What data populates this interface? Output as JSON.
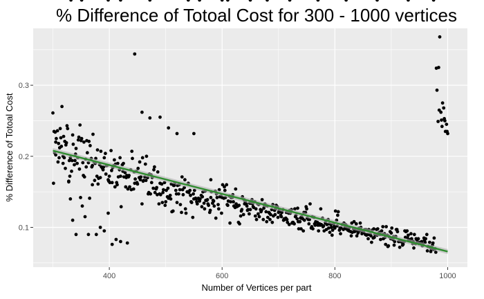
{
  "chart_data": {
    "type": "scatter",
    "title": "% Difference of Totoal Cost  for 300 - 1000 vertices",
    "xlabel": "Number of Vertices per part",
    "ylabel": "% Difference of Totoal Cost",
    "xlim": [
      265,
      1035
    ],
    "ylim": [
      0.044,
      0.38
    ],
    "xticks": [
      400,
      600,
      800,
      1000
    ],
    "xtick_labels": [
      "400",
      "600",
      "800",
      "1000"
    ],
    "yticks": [
      0.1,
      0.2,
      0.3
    ],
    "ytick_labels": [
      "0.1",
      "0.2",
      "0.3"
    ],
    "grid": true,
    "legend": "none",
    "colors": {
      "panel": "#ebebeb",
      "grid": "#ffffff",
      "points": "#000000",
      "trend": "#2e8b2e",
      "band": "#b3b3b3"
    },
    "trend_line": {
      "x": [
        300,
        1000
      ],
      "y": [
        0.208,
        0.066
      ]
    },
    "points_x": [
      300,
      301,
      303,
      304,
      305,
      306,
      308,
      309,
      310,
      311,
      313,
      314,
      315,
      316,
      318,
      319,
      320,
      321,
      323,
      324,
      325,
      326,
      328,
      329,
      330,
      331,
      333,
      334,
      335,
      336,
      338,
      339,
      340,
      341,
      343,
      344,
      345,
      346,
      348,
      349,
      350,
      351,
      353,
      354,
      355,
      356,
      358,
      359,
      360,
      361,
      363,
      364,
      365,
      366,
      368,
      369,
      370,
      371,
      373,
      374,
      375,
      376,
      378,
      379,
      380,
      381,
      383,
      384,
      385,
      386,
      388,
      389,
      390,
      391,
      393,
      394,
      395,
      396,
      398,
      399,
      400,
      401,
      403,
      404,
      405,
      406,
      408,
      409,
      410,
      411,
      413,
      414,
      415,
      416,
      418,
      419,
      420,
      421,
      423,
      424,
      425,
      426,
      428,
      429,
      430,
      431,
      433,
      434,
      435,
      436,
      438,
      439,
      440,
      441,
      443,
      444,
      445,
      446,
      448,
      449,
      450,
      451,
      453,
      454,
      455,
      456,
      458,
      459,
      460,
      461,
      463,
      464,
      465,
      466,
      468,
      469,
      470,
      471,
      473,
      474,
      475,
      476,
      478,
      479,
      480,
      481,
      483,
      484,
      485,
      486,
      488,
      489,
      490,
      491,
      493,
      494,
      495,
      496,
      498,
      499,
      500,
      501,
      503,
      504,
      505,
      506,
      508,
      509,
      510,
      511,
      513,
      514,
      515,
      516,
      518,
      519,
      520,
      521,
      523,
      524,
      525,
      526,
      528,
      529,
      530,
      531,
      533,
      534,
      535,
      536,
      538,
      539,
      540,
      541,
      543,
      544,
      545,
      546,
      548,
      549,
      550,
      551,
      553,
      554,
      555,
      556,
      558,
      559,
      560,
      561,
      563,
      564,
      565,
      566,
      568,
      569,
      570,
      571,
      573,
      574,
      575,
      576,
      578,
      579,
      580,
      581,
      583,
      584,
      585,
      586,
      588,
      589,
      590,
      591,
      593,
      594,
      595,
      596,
      598,
      599,
      600,
      601,
      603,
      604,
      605,
      606,
      608,
      609,
      610,
      611,
      613,
      614,
      615,
      616,
      618,
      619,
      620,
      621,
      623,
      624,
      625,
      626,
      628,
      629,
      630,
      631,
      633,
      634,
      635,
      636,
      638,
      639,
      640,
      641,
      643,
      644,
      645,
      646,
      648,
      649,
      650,
      651,
      653,
      654,
      655,
      656,
      658,
      659,
      660,
      661,
      663,
      664,
      665,
      666,
      668,
      669,
      670,
      671,
      673,
      674,
      675,
      676,
      678,
      679,
      680,
      681,
      683,
      684,
      685,
      686,
      688,
      689,
      690,
      691,
      693,
      694,
      695,
      696,
      698,
      699,
      700,
      701,
      703,
      704,
      705,
      706,
      708,
      709,
      710,
      711,
      713,
      714,
      715,
      716,
      718,
      719,
      720,
      721,
      723,
      724,
      725,
      726,
      728,
      729,
      730,
      731,
      733,
      734,
      735,
      736,
      738,
      739,
      740,
      741,
      743,
      744,
      745,
      746,
      748,
      749,
      750,
      751,
      753,
      754,
      755,
      756,
      758,
      759,
      760,
      761,
      763,
      764,
      765,
      766,
      768,
      769,
      770,
      771,
      773,
      774,
      775,
      776,
      778,
      779,
      780,
      781,
      783,
      784,
      785,
      786,
      788,
      789,
      790,
      791,
      793,
      794,
      795,
      796,
      798,
      799,
      800,
      801,
      803,
      804,
      805,
      806,
      808,
      809,
      810,
      811,
      813,
      814,
      815,
      816,
      818,
      819,
      820,
      821,
      823,
      824,
      825,
      826,
      828,
      829,
      830,
      831,
      833,
      834,
      835,
      836,
      838,
      839,
      840,
      841,
      843,
      844,
      845,
      846,
      848,
      849,
      850,
      851,
      853,
      854,
      855,
      856,
      858,
      859,
      860,
      861,
      863,
      864,
      865,
      866,
      868,
      869,
      870,
      871,
      873,
      874,
      875,
      876,
      878,
      879,
      880,
      881,
      883,
      884,
      885,
      886,
      888,
      889,
      890,
      891,
      893,
      894,
      895,
      896,
      898,
      899,
      900,
      901,
      903,
      904,
      905,
      906,
      908,
      909,
      910,
      911,
      913,
      914,
      915,
      916,
      918,
      919,
      920,
      921,
      923,
      924,
      925,
      926,
      928,
      929,
      930,
      931,
      933,
      934,
      935,
      936,
      938,
      939,
      940,
      941,
      943,
      944,
      945,
      946,
      948,
      949,
      950,
      951,
      953,
      954,
      955,
      956,
      958,
      959,
      960,
      961,
      963,
      964,
      965,
      966,
      968,
      969,
      970,
      971,
      973,
      974,
      975,
      976,
      978,
      979,
      980,
      981,
      983,
      984,
      985,
      986,
      988,
      989,
      990,
      991,
      993,
      994,
      995,
      996,
      998,
      999,
      1000,
      302,
      305,
      312,
      318,
      322,
      328,
      331,
      335,
      341,
      347,
      352,
      357,
      363,
      370,
      377,
      384,
      391,
      398,
      405,
      412,
      420,
      432,
      445,
      458,
      472,
      490,
      505,
      520,
      550,
      580,
      610,
      650,
      680,
      720,
      770,
      820,
      875,
      930,
      975,
      332,
      351,
      398,
      420,
      472,
      540,
      560,
      600
    ],
    "points_y": [
      0.261,
      0.162,
      0.205,
      0.234,
      0.202,
      0.225,
      0.236,
      0.192,
      0.218,
      0.198,
      0.239,
      0.226,
      0.214,
      0.27,
      0.19,
      0.228,
      0.198,
      0.221,
      0.216,
      0.219,
      0.243,
      0.239,
      0.164,
      0.194,
      0.172,
      0.198,
      0.179,
      0.194,
      0.23,
      0.217,
      0.188,
      0.194,
      0.203,
      0.211,
      0.19,
      0.198,
      0.223,
      0.227,
      0.244,
      0.142,
      0.222,
      0.225,
      0.191,
      0.173,
      0.22,
      0.171,
      0.196,
      0.185,
      0.222,
      0.205,
      0.191,
      0.221,
      0.141,
      0.215,
      0.197,
      0.185,
      0.187,
      0.231,
      0.192,
      0.166,
      0.19,
      0.197,
      0.172,
      0.209,
      0.161,
      0.169,
      0.188,
      0.17,
      0.207,
      0.185,
      0.183,
      0.181,
      0.185,
      0.198,
      0.204,
      0.175,
      0.187,
      0.187,
      0.167,
      0.165,
      0.172,
      0.163,
      0.208,
      0.18,
      0.163,
      0.184,
      0.187,
      0.195,
      0.157,
      0.189,
      0.163,
      0.16,
      0.19,
      0.171,
      0.181,
      0.198,
      0.172,
      0.129,
      0.188,
      0.179,
      0.19,
      0.171,
      0.177,
      0.157,
      0.17,
      0.173,
      0.154,
      0.171,
      0.173,
      0.157,
      0.181,
      0.153,
      0.207,
      0.197,
      0.154,
      0.178,
      0.162,
      0.168,
      0.179,
      0.163,
      0.161,
      0.183,
      0.17,
      0.192,
      0.167,
      0.171,
      0.133,
      0.198,
      0.165,
      0.166,
      0.171,
      0.189,
      0.166,
      0.2,
      0.17,
      0.147,
      0.149,
      0.175,
      0.147,
      0.174,
      0.163,
      0.17,
      0.155,
      0.181,
      0.185,
      0.149,
      0.154,
      0.156,
      0.146,
      0.178,
      0.133,
      0.147,
      0.162,
      0.146,
      0.161,
      0.135,
      0.149,
      0.153,
      0.163,
      0.131,
      0.136,
      0.152,
      0.143,
      0.155,
      0.141,
      0.142,
      0.145,
      0.14,
      0.161,
      0.122,
      0.123,
      0.159,
      0.159,
      0.162,
      0.152,
      0.147,
      0.135,
      0.159,
      0.147,
      0.16,
      0.153,
      0.132,
      0.121,
      0.171,
      0.153,
      0.146,
      0.156,
      0.167,
      0.126,
      0.12,
      0.15,
      0.15,
      0.162,
      0.149,
      0.152,
      0.145,
      0.136,
      0.135,
      0.114,
      0.147,
      0.14,
      0.152,
      0.141,
      0.14,
      0.136,
      0.133,
      0.141,
      0.14,
      0.137,
      0.14,
      0.145,
      0.129,
      0.143,
      0.15,
      0.134,
      0.126,
      0.151,
      0.138,
      0.138,
      0.139,
      0.133,
      0.131,
      0.121,
      0.124,
      0.142,
      0.15,
      0.134,
      0.138,
      0.137,
      0.13,
      0.151,
      0.113,
      0.147,
      0.142,
      0.132,
      0.126,
      0.153,
      0.143,
      0.144,
      0.12,
      0.142,
      0.16,
      0.141,
      0.157,
      0.152,
      0.142,
      0.16,
      0.132,
      0.131,
      0.137,
      0.144,
      0.106,
      0.136,
      0.142,
      0.142,
      0.146,
      0.136,
      0.13,
      0.128,
      0.154,
      0.133,
      0.129,
      0.13,
      0.107,
      0.131,
      0.105,
      0.116,
      0.123,
      0.125,
      0.143,
      0.118,
      0.139,
      0.133,
      0.136,
      0.133,
      0.13,
      0.124,
      0.125,
      0.119,
      0.134,
      0.125,
      0.134,
      0.139,
      0.133,
      0.129,
      0.128,
      0.136,
      0.116,
      0.126,
      0.111,
      0.133,
      0.119,
      0.132,
      0.115,
      0.125,
      0.122,
      0.124,
      0.139,
      0.111,
      0.127,
      0.13,
      0.133,
      0.122,
      0.108,
      0.13,
      0.114,
      0.121,
      0.12,
      0.111,
      0.118,
      0.125,
      0.107,
      0.132,
      0.116,
      0.124,
      0.118,
      0.126,
      0.131,
      0.129,
      0.114,
      0.121,
      0.124,
      0.122,
      0.117,
      0.115,
      0.121,
      0.125,
      0.11,
      0.112,
      0.111,
      0.113,
      0.121,
      0.111,
      0.107,
      0.12,
      0.104,
      0.124,
      0.12,
      0.125,
      0.106,
      0.107,
      0.107,
      0.105,
      0.126,
      0.115,
      0.117,
      0.112,
      0.127,
      0.108,
      0.098,
      0.108,
      0.113,
      0.098,
      0.115,
      0.112,
      0.095,
      0.121,
      0.11,
      0.121,
      0.129,
      0.126,
      0.113,
      0.111,
      0.105,
      0.111,
      0.133,
      0.099,
      0.101,
      0.115,
      0.098,
      0.114,
      0.105,
      0.103,
      0.108,
      0.107,
      0.107,
      0.103,
      0.095,
      0.105,
      0.103,
      0.126,
      0.104,
      0.113,
      0.101,
      0.102,
      0.095,
      0.106,
      0.109,
      0.097,
      0.104,
      0.111,
      0.099,
      0.105,
      0.093,
      0.104,
      0.1,
      0.089,
      0.096,
      0.105,
      0.101,
      0.099,
      0.123,
      0.11,
      0.102,
      0.117,
      0.122,
      0.096,
      0.099,
      0.091,
      0.099,
      0.104,
      0.104,
      0.097,
      0.106,
      0.1,
      0.104,
      0.098,
      0.102,
      0.096,
      0.098,
      0.095,
      0.1,
      0.094,
      0.088,
      0.106,
      0.093,
      0.098,
      0.108,
      0.094,
      0.096,
      0.105,
      0.088,
      0.095,
      0.092,
      0.099,
      0.095,
      0.106,
      0.1,
      0.091,
      0.094,
      0.093,
      0.093,
      0.097,
      0.09,
      0.097,
      0.089,
      0.09,
      0.084,
      0.097,
      0.09,
      0.09,
      0.088,
      0.079,
      0.096,
      0.085,
      0.098,
      0.086,
      0.09,
      0.09,
      0.097,
      0.089,
      0.098,
      0.092,
      0.093,
      0.09,
      0.083,
      0.095,
      0.09,
      0.101,
      0.084,
      0.091,
      0.086,
      0.076,
      0.101,
      0.089,
      0.073,
      0.074,
      0.087,
      0.094,
      0.084,
      0.092,
      0.099,
      0.083,
      0.087,
      0.075,
      0.08,
      0.087,
      0.097,
      0.097,
      0.094,
      0.08,
      0.08,
      0.072,
      0.081,
      0.08,
      0.079,
      0.075,
      0.076,
      0.08,
      0.095,
      0.086,
      0.094,
      0.095,
      0.085,
      0.089,
      0.082,
      0.081,
      0.083,
      0.091,
      0.084,
      0.077,
      0.08,
      0.071,
      0.09,
      0.077,
      0.084,
      0.083,
      0.08,
      0.084,
      0.077,
      0.078,
      0.079,
      0.077,
      0.08,
      0.074,
      0.076,
      0.085,
      0.082,
      0.079,
      0.084,
      0.09,
      0.067,
      0.073,
      0.073,
      0.079,
      0.072,
      0.066,
      0.069,
      0.075,
      0.078,
      0.069,
      0.085,
      0.07,
      0.065,
      0.324,
      0.293,
      0.249,
      0.325,
      0.265,
      0.368,
      0.262,
      0.251,
      0.242,
      0.275,
      0.268,
      0.253,
      0.25,
      0.235,
      0.245,
      0.235,
      0.232,
      0.235,
      0.22,
      0.212,
      0.2,
      0.183,
      0.165,
      0.14,
      0.11,
      0.09,
      0.182,
      0.13,
      0.115,
      0.09,
      0.16,
      0.09,
      0.1,
      0.095,
      0.12,
      0.076,
      0.083,
      0.08,
      0.078,
      0.344,
      0.262,
      0.254,
      0.255,
      0.24,
      0.232,
      0.232,
      0.167
    ]
  }
}
